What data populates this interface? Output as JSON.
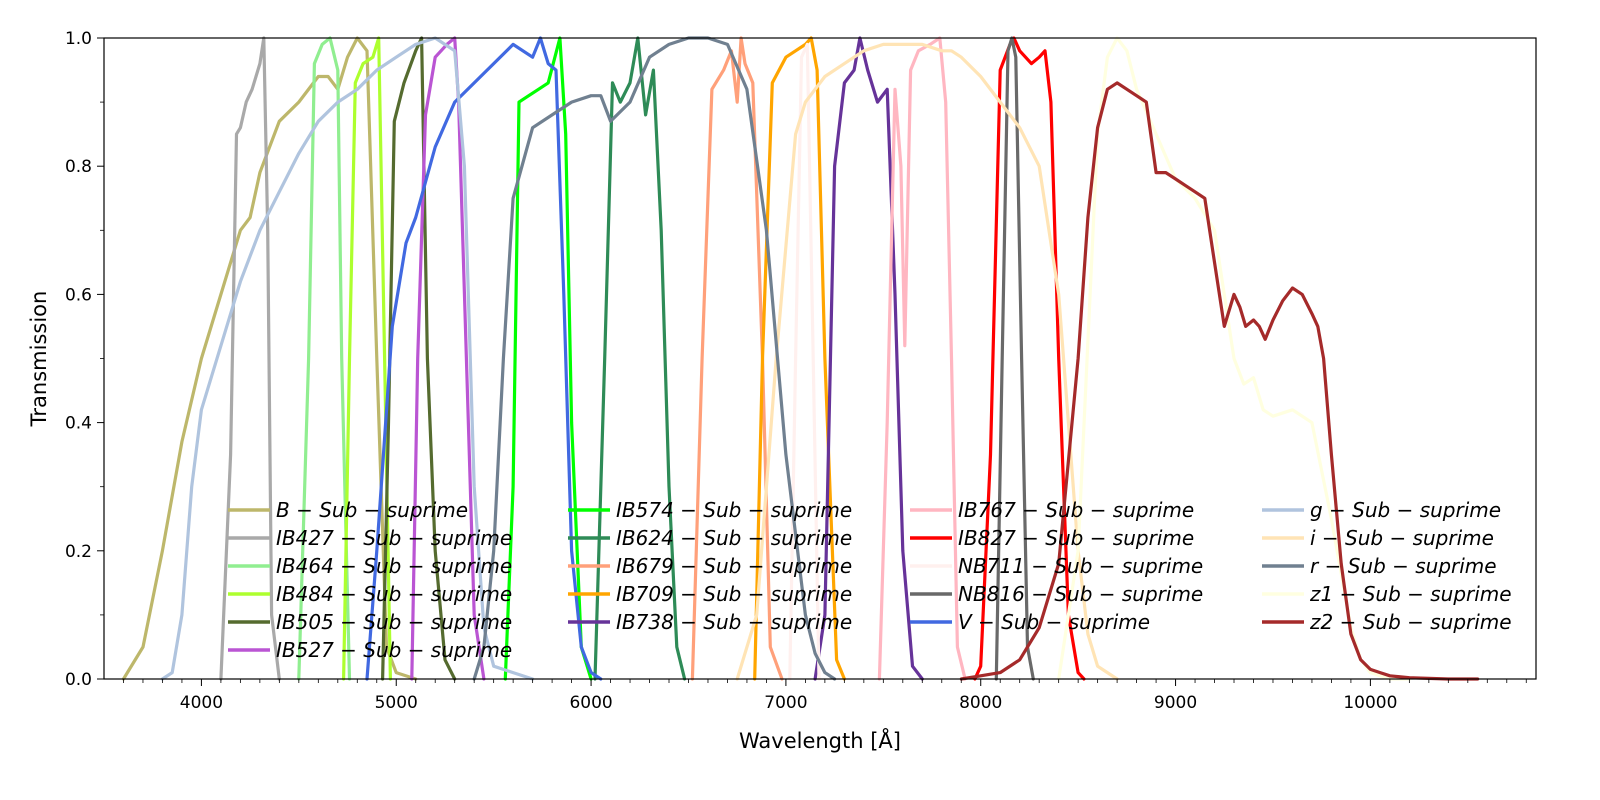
{
  "chart_data": {
    "type": "line",
    "xlabel": "Wavelength [Å]",
    "ylabel": "Transmission",
    "xlim": [
      3500,
      10850
    ],
    "ylim": [
      0,
      1.0
    ],
    "x_ticks": [
      4000,
      5000,
      6000,
      7000,
      8000,
      9000,
      10000
    ],
    "y_ticks": [
      0.0,
      0.2,
      0.4,
      0.6,
      0.8,
      1.0
    ],
    "x_tick_labels": [
      "4000",
      "5000",
      "6000",
      "7000",
      "8000",
      "9000",
      "10000"
    ],
    "y_tick_labels": [
      "0.0",
      "0.2",
      "0.4",
      "0.6",
      "0.8",
      "1.0"
    ],
    "grid": false,
    "legend_placement": "lower-center, 4 columns",
    "series": [
      {
        "name": "B − Sub − suprime",
        "color": "#bdb76b",
        "x": [
          3600,
          3700,
          3800,
          3900,
          4000,
          4100,
          4200,
          4250,
          4300,
          4400,
          4500,
          4600,
          4650,
          4700,
          4750,
          4800,
          4850,
          4900,
          4950,
          5000,
          5100
        ],
        "y": [
          0,
          0.05,
          0.2,
          0.37,
          0.5,
          0.6,
          0.7,
          0.72,
          0.79,
          0.87,
          0.9,
          0.94,
          0.94,
          0.92,
          0.97,
          1.0,
          0.98,
          0.5,
          0.05,
          0.01,
          0
        ]
      },
      {
        "name": "IB427 − Sub − suprime",
        "color": "#a9a9a9",
        "x": [
          4100,
          4150,
          4180,
          4200,
          4230,
          4260,
          4300,
          4320,
          4340,
          4360,
          4400
        ],
        "y": [
          0,
          0.35,
          0.85,
          0.86,
          0.9,
          0.92,
          0.96,
          1.0,
          0.7,
          0.1,
          0
        ]
      },
      {
        "name": "IB464 − Sub − suprime",
        "color": "#90ee90",
        "x": [
          4500,
          4550,
          4580,
          4620,
          4660,
          4700,
          4720,
          4760
        ],
        "y": [
          0,
          0.5,
          0.96,
          0.99,
          1.0,
          0.95,
          0.5,
          0
        ]
      },
      {
        "name": "IB484 − Sub − suprime",
        "color": "#adff2f",
        "x": [
          4730,
          4760,
          4790,
          4830,
          4880,
          4910,
          4940,
          4970
        ],
        "y": [
          0,
          0.5,
          0.93,
          0.96,
          0.97,
          1.0,
          0.5,
          0
        ]
      },
      {
        "name": "IB505 − Sub − suprime",
        "color": "#556b2f",
        "x": [
          4930,
          4960,
          4990,
          5040,
          5100,
          5130,
          5160,
          5200,
          5250,
          5300
        ],
        "y": [
          0,
          0.4,
          0.87,
          0.93,
          0.98,
          1.0,
          0.5,
          0.2,
          0.03,
          0
        ]
      },
      {
        "name": "IB527 − Sub − suprime",
        "color": "#ba55d3",
        "x": [
          5080,
          5110,
          5150,
          5200,
          5260,
          5300,
          5320,
          5360,
          5400,
          5450
        ],
        "y": [
          0,
          0.5,
          0.88,
          0.97,
          0.99,
          1.0,
          0.9,
          0.5,
          0.1,
          0
        ]
      },
      {
        "name": "IB574 − Sub − suprime",
        "color": "#00ff00",
        "x": [
          5560,
          5600,
          5630,
          5680,
          5730,
          5780,
          5840,
          5870,
          5900,
          5950,
          6000
        ],
        "y": [
          0,
          0.3,
          0.9,
          0.91,
          0.92,
          0.93,
          1.0,
          0.85,
          0.4,
          0.05,
          0
        ]
      },
      {
        "name": "IB624 − Sub − suprime",
        "color": "#2e8b57",
        "x": [
          6020,
          6070,
          6110,
          6150,
          6200,
          6240,
          6280,
          6320,
          6360,
          6400,
          6440,
          6480
        ],
        "y": [
          0,
          0.5,
          0.93,
          0.9,
          0.93,
          1.0,
          0.88,
          0.95,
          0.7,
          0.3,
          0.05,
          0
        ]
      },
      {
        "name": "IB679 − Sub − suprime",
        "color": "#ffa07a",
        "x": [
          6520,
          6570,
          6620,
          6680,
          6720,
          6750,
          6770,
          6790,
          6830,
          6880,
          6920,
          6980
        ],
        "y": [
          0,
          0.5,
          0.92,
          0.95,
          0.98,
          0.9,
          1.0,
          0.96,
          0.93,
          0.5,
          0.05,
          0
        ]
      },
      {
        "name": "IB709 − Sub − suprime",
        "color": "#ffa500",
        "x": [
          6840,
          6880,
          6930,
          7000,
          7050,
          7100,
          7130,
          7160,
          7200,
          7260,
          7300
        ],
        "y": [
          0,
          0.5,
          0.93,
          0.97,
          0.98,
          0.99,
          1.0,
          0.95,
          0.5,
          0.03,
          0
        ]
      },
      {
        "name": "IB738 − Sub − suprime",
        "color": "#663399",
        "x": [
          7150,
          7200,
          7250,
          7300,
          7350,
          7380,
          7420,
          7470,
          7520,
          7560,
          7600,
          7650,
          7700
        ],
        "y": [
          0,
          0.1,
          0.8,
          0.93,
          0.95,
          1.0,
          0.95,
          0.9,
          0.92,
          0.6,
          0.2,
          0.02,
          0
        ]
      },
      {
        "name": "IB767 − Sub − suprime",
        "color": "#ffb6c1",
        "x": [
          7480,
          7520,
          7560,
          7590,
          7610,
          7640,
          7680,
          7740,
          7790,
          7820,
          7850,
          7880,
          7920
        ],
        "y": [
          0,
          0.4,
          0.92,
          0.8,
          0.52,
          0.95,
          0.98,
          0.99,
          1.0,
          0.9,
          0.5,
          0.05,
          0
        ]
      },
      {
        "name": "IB827 − Sub − suprime",
        "color": "#ff0000",
        "x": [
          7970,
          8000,
          8050,
          8100,
          8150,
          8170,
          8200,
          8260,
          8300,
          8330,
          8360,
          8400,
          8450,
          8500,
          8530
        ],
        "y": [
          0,
          0.02,
          0.35,
          0.95,
          0.99,
          1.0,
          0.98,
          0.96,
          0.97,
          0.98,
          0.9,
          0.5,
          0.1,
          0.01,
          0
        ]
      },
      {
        "name": "NB711 − Sub − suprime",
        "color": "#fff0ee",
        "x": [
          7020,
          7050,
          7080,
          7110,
          7140,
          7170
        ],
        "y": [
          0,
          0.5,
          0.97,
          0.99,
          0.5,
          0
        ]
      },
      {
        "name": "NB816 − Sub − suprime",
        "color": "#696969",
        "x": [
          8080,
          8110,
          8140,
          8160,
          8180,
          8210,
          8240,
          8270
        ],
        "y": [
          0,
          0.5,
          0.98,
          1.0,
          0.97,
          0.5,
          0.05,
          0
        ]
      },
      {
        "name": "V − Sub − suprime",
        "color": "#4169e1",
        "x": [
          4850,
          4900,
          4980,
          5050,
          5100,
          5200,
          5300,
          5400,
          5500,
          5600,
          5700,
          5740,
          5780,
          5820,
          5860,
          5900,
          5950,
          6000,
          6050
        ],
        "y": [
          0,
          0.2,
          0.55,
          0.68,
          0.72,
          0.83,
          0.9,
          0.93,
          0.96,
          0.99,
          0.97,
          1.0,
          0.96,
          0.95,
          0.6,
          0.2,
          0.05,
          0.01,
          0
        ]
      },
      {
        "name": "g − Sub − suprime",
        "color": "#b0c4de",
        "x": [
          3800,
          3850,
          3900,
          3950,
          4000,
          4100,
          4200,
          4300,
          4400,
          4500,
          4600,
          4700,
          4800,
          4900,
          5000,
          5100,
          5200,
          5300,
          5350,
          5400,
          5450,
          5500,
          5600,
          5700
        ],
        "y": [
          0,
          0.01,
          0.1,
          0.3,
          0.42,
          0.52,
          0.62,
          0.7,
          0.76,
          0.82,
          0.87,
          0.9,
          0.92,
          0.95,
          0.97,
          0.99,
          1.0,
          0.98,
          0.8,
          0.3,
          0.08,
          0.02,
          0.01,
          0
        ]
      },
      {
        "name": "i − Sub − suprime",
        "color": "#ffe4b5",
        "x": [
          6750,
          6850,
          6950,
          7050,
          7100,
          7150,
          7200,
          7300,
          7400,
          7500,
          7600,
          7700,
          7800,
          7850,
          7900,
          8000,
          8100,
          8200,
          8300,
          8400,
          8450,
          8500,
          8550,
          8600,
          8650,
          8700
        ],
        "y": [
          0,
          0.1,
          0.5,
          0.85,
          0.9,
          0.92,
          0.94,
          0.96,
          0.98,
          0.99,
          0.99,
          0.99,
          0.98,
          0.98,
          0.97,
          0.94,
          0.9,
          0.86,
          0.8,
          0.6,
          0.4,
          0.2,
          0.07,
          0.02,
          0.01,
          0
        ]
      },
      {
        "name": "r − Sub − suprime",
        "color": "#708090",
        "x": [
          5400,
          5450,
          5500,
          5550,
          5600,
          5700,
          5800,
          5900,
          6000,
          6050,
          6100,
          6200,
          6300,
          6400,
          6500,
          6600,
          6700,
          6800,
          6900,
          7000,
          7100,
          7150,
          7200,
          7250
        ],
        "y": [
          0,
          0.05,
          0.2,
          0.5,
          0.75,
          0.86,
          0.88,
          0.9,
          0.91,
          0.91,
          0.87,
          0.9,
          0.97,
          0.99,
          1.0,
          1.0,
          0.99,
          0.92,
          0.7,
          0.35,
          0.1,
          0.04,
          0.01,
          0
        ]
      },
      {
        "name": "z1 − Sub − suprime",
        "color": "#ffffe0",
        "x": [
          8400,
          8500,
          8600,
          8650,
          8700,
          8750,
          8800,
          8900,
          9000,
          9100,
          9200,
          9300,
          9350,
          9400,
          9450,
          9500,
          9600,
          9700,
          9800,
          9900,
          9950,
          10000,
          10100,
          10200
        ],
        "y": [
          0,
          0.2,
          0.85,
          0.97,
          1.0,
          0.98,
          0.92,
          0.85,
          0.78,
          0.75,
          0.7,
          0.5,
          0.46,
          0.47,
          0.42,
          0.41,
          0.42,
          0.4,
          0.25,
          0.08,
          0.03,
          0.01,
          0,
          0
        ]
      },
      {
        "name": "z2 − Sub − suprime",
        "color": "#a52a2a",
        "x": [
          7900,
          8000,
          8100,
          8200,
          8300,
          8400,
          8500,
          8550,
          8600,
          8650,
          8700,
          8750,
          8800,
          8850,
          8900,
          8950,
          9000,
          9050,
          9100,
          9150,
          9200,
          9250,
          9300,
          9330,
          9360,
          9400,
          9430,
          9460,
          9500,
          9550,
          9600,
          9650,
          9700,
          9730,
          9760,
          9800,
          9850,
          9900,
          9950,
          10000,
          10050,
          10100,
          10200,
          10300,
          10400,
          10550
        ],
        "y": [
          0,
          0.005,
          0.01,
          0.03,
          0.08,
          0.18,
          0.5,
          0.72,
          0.86,
          0.92,
          0.93,
          0.92,
          0.91,
          0.9,
          0.79,
          0.79,
          0.78,
          0.77,
          0.76,
          0.75,
          0.65,
          0.55,
          0.6,
          0.58,
          0.55,
          0.56,
          0.55,
          0.53,
          0.56,
          0.59,
          0.61,
          0.6,
          0.57,
          0.55,
          0.5,
          0.35,
          0.18,
          0.07,
          0.03,
          0.015,
          0.01,
          0.005,
          0.002,
          0.001,
          0,
          0
        ]
      }
    ]
  }
}
